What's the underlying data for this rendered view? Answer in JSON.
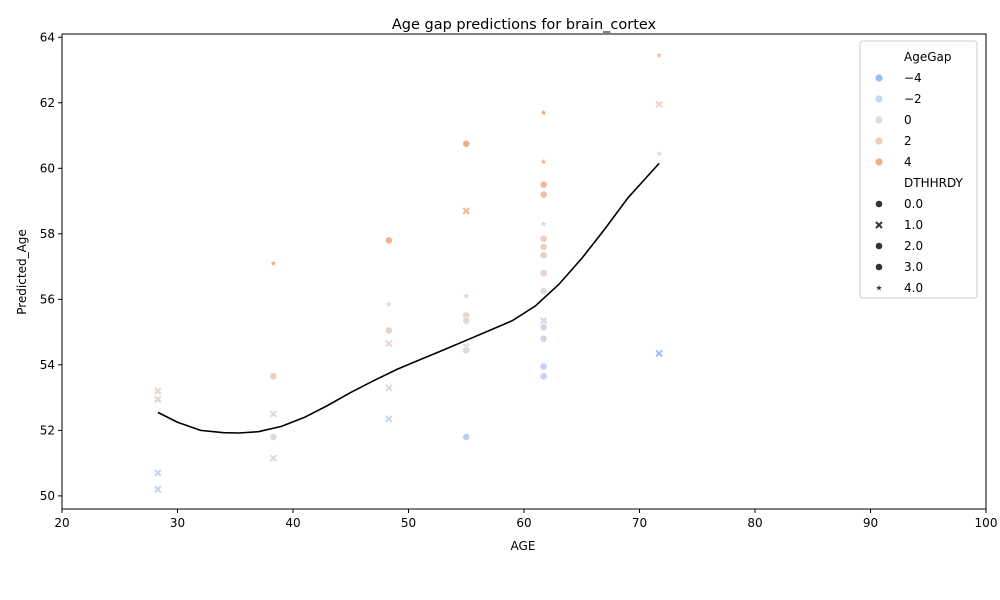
{
  "chart_data": {
    "type": "scatter",
    "title": "Age gap predictions for brain_cortex",
    "xlabel": "AGE",
    "ylabel": "Predicted_Age",
    "xlim": [
      20,
      100
    ],
    "ylim": [
      49.6,
      64.1
    ],
    "xticks": [
      "20",
      "30",
      "40",
      "50",
      "60",
      "70",
      "80",
      "90",
      "100"
    ],
    "yticks": [
      "50",
      "52",
      "54",
      "56",
      "58",
      "60",
      "62",
      "64"
    ],
    "grid": false,
    "legend_placement": "top-right",
    "legend": {
      "hue_title": "AgeGap",
      "hue_entries": [
        {
          "label": "−4",
          "color": "#9bbcf8"
        },
        {
          "label": "−2",
          "color": "#c6d6f1"
        },
        {
          "label": "0",
          "color": "#dcdbdb"
        },
        {
          "label": "2",
          "color": "#f0cdbb"
        },
        {
          "label": "4",
          "color": "#f2aa88"
        }
      ],
      "style_title": "DTHHRDY",
      "style_entries": [
        {
          "label": "0.0",
          "marker": "circle"
        },
        {
          "label": "1.0",
          "marker": "x"
        },
        {
          "label": "2.0",
          "marker": "circle"
        },
        {
          "label": "3.0",
          "marker": "circle"
        },
        {
          "label": "4.0",
          "marker": "star"
        }
      ]
    },
    "points": [
      {
        "x": 28.3,
        "y": 53.2,
        "gap": 1.2,
        "m": "x"
      },
      {
        "x": 28.3,
        "y": 52.95,
        "gap": 0.8,
        "m": "x"
      },
      {
        "x": 28.3,
        "y": 50.7,
        "gap": -2.5,
        "m": "x"
      },
      {
        "x": 28.3,
        "y": 50.2,
        "gap": -2.6,
        "m": "x"
      },
      {
        "x": 38.3,
        "y": 57.1,
        "gap": 4.5,
        "m": "star"
      },
      {
        "x": 38.3,
        "y": 53.65,
        "gap": 1.8,
        "m": "circle"
      },
      {
        "x": 38.3,
        "y": 52.5,
        "gap": 0.2,
        "m": "x"
      },
      {
        "x": 38.3,
        "y": 51.8,
        "gap": 0.0,
        "m": "circle"
      },
      {
        "x": 38.3,
        "y": 51.15,
        "gap": -0.5,
        "m": "x"
      },
      {
        "x": 48.3,
        "y": 57.8,
        "gap": 3.8,
        "m": "circle"
      },
      {
        "x": 48.3,
        "y": 55.85,
        "gap": 2.0,
        "m": "star"
      },
      {
        "x": 48.3,
        "y": 55.05,
        "gap": 1.3,
        "m": "circle"
      },
      {
        "x": 48.3,
        "y": 54.65,
        "gap": 1.0,
        "m": "x"
      },
      {
        "x": 48.3,
        "y": 53.3,
        "gap": -0.3,
        "m": "x"
      },
      {
        "x": 48.3,
        "y": 52.35,
        "gap": -1.8,
        "m": "x"
      },
      {
        "x": 55.0,
        "y": 60.75,
        "gap": 4.0,
        "m": "circle"
      },
      {
        "x": 55.0,
        "y": 58.7,
        "gap": 3.6,
        "m": "x"
      },
      {
        "x": 55.0,
        "y": 56.1,
        "gap": 1.8,
        "m": "star"
      },
      {
        "x": 55.0,
        "y": 55.5,
        "gap": 1.2,
        "m": "circle"
      },
      {
        "x": 55.0,
        "y": 55.35,
        "gap": 0.3,
        "m": "circle"
      },
      {
        "x": 55.0,
        "y": 54.55,
        "gap": 0.2,
        "m": "x"
      },
      {
        "x": 55.0,
        "y": 54.45,
        "gap": 0.0,
        "m": "circle"
      },
      {
        "x": 55.0,
        "y": 51.8,
        "gap": -3.0,
        "m": "circle"
      },
      {
        "x": 61.7,
        "y": 61.7,
        "gap": 5.0,
        "m": "star"
      },
      {
        "x": 61.7,
        "y": 60.2,
        "gap": 3.8,
        "m": "star"
      },
      {
        "x": 61.7,
        "y": 59.5,
        "gap": 3.5,
        "m": "circle"
      },
      {
        "x": 61.7,
        "y": 59.2,
        "gap": 3.0,
        "m": "circle"
      },
      {
        "x": 61.7,
        "y": 58.3,
        "gap": 2.0,
        "m": "star"
      },
      {
        "x": 61.7,
        "y": 57.85,
        "gap": 1.5,
        "m": "circle"
      },
      {
        "x": 61.7,
        "y": 57.6,
        "gap": 1.4,
        "m": "circle"
      },
      {
        "x": 61.7,
        "y": 57.35,
        "gap": 1.6,
        "m": "circle"
      },
      {
        "x": 61.7,
        "y": 56.8,
        "gap": 1.2,
        "m": "circle"
      },
      {
        "x": 61.7,
        "y": 56.25,
        "gap": 0.2,
        "m": "circle"
      },
      {
        "x": 61.7,
        "y": 55.35,
        "gap": -0.6,
        "m": "x"
      },
      {
        "x": 61.7,
        "y": 55.15,
        "gap": -1.1,
        "m": "circle"
      },
      {
        "x": 61.7,
        "y": 54.8,
        "gap": -1.5,
        "m": "circle"
      },
      {
        "x": 61.7,
        "y": 53.95,
        "gap": -2.1,
        "m": "circle"
      },
      {
        "x": 61.7,
        "y": 53.65,
        "gap": -2.4,
        "m": "circle"
      },
      {
        "x": 71.7,
        "y": 63.45,
        "gap": 3.0,
        "m": "star"
      },
      {
        "x": 71.7,
        "y": 61.95,
        "gap": 1.3,
        "m": "x"
      },
      {
        "x": 71.7,
        "y": 60.45,
        "gap": 0.3,
        "m": "star"
      },
      {
        "x": 71.7,
        "y": 54.35,
        "gap": -5.3,
        "m": "x"
      }
    ],
    "trend_line": {
      "x": [
        28.3,
        30,
        32,
        34,
        35.3,
        37,
        39,
        41,
        43,
        45,
        47,
        49,
        51,
        53,
        55,
        57,
        59,
        61,
        63,
        65,
        67,
        69,
        71.7
      ],
      "y": [
        52.55,
        52.25,
        52.0,
        51.93,
        51.92,
        51.96,
        52.12,
        52.4,
        52.76,
        53.16,
        53.52,
        53.86,
        54.16,
        54.45,
        54.75,
        55.05,
        55.35,
        55.8,
        56.45,
        57.25,
        58.15,
        59.1,
        60.15
      ]
    }
  }
}
